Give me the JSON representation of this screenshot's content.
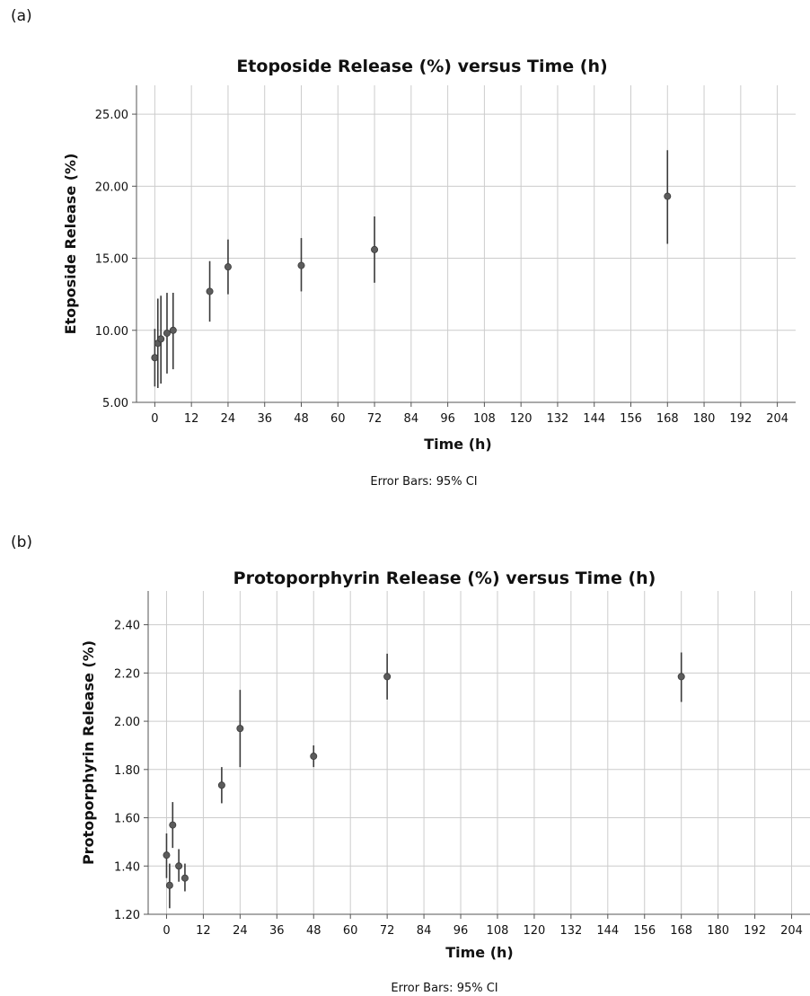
{
  "panels": [
    {
      "label": "(a)"
    },
    {
      "label": "(b)"
    }
  ],
  "chart_data": [
    {
      "type": "scatter",
      "title": "Etoposide Release (%) versus Time (h)",
      "xlabel": "Time (h)",
      "ylabel": "Etoposide Release (%)",
      "note": "Error Bars: 95% CI",
      "xlim": [
        -6,
        210
      ],
      "ylim": [
        5,
        27
      ],
      "xticks": [
        0,
        12,
        24,
        36,
        48,
        60,
        72,
        84,
        96,
        108,
        120,
        132,
        144,
        156,
        168,
        180,
        192,
        204
      ],
      "yticks": [
        5,
        10,
        15,
        20,
        25
      ],
      "ytick_labels": [
        "5.00",
        "10.00",
        "15.00",
        "20.00",
        "25.00"
      ],
      "grid": true,
      "error_bars": "95% CI",
      "points": [
        {
          "x": 0,
          "y": 8.1,
          "lo": 6.1,
          "hi": 10.1
        },
        {
          "x": 1,
          "y": 9.1,
          "lo": 6.0,
          "hi": 12.2
        },
        {
          "x": 2,
          "y": 9.4,
          "lo": 6.3,
          "hi": 12.4
        },
        {
          "x": 4,
          "y": 9.8,
          "lo": 7.0,
          "hi": 12.6
        },
        {
          "x": 6,
          "y": 10.0,
          "lo": 7.3,
          "hi": 12.6
        },
        {
          "x": 18,
          "y": 12.7,
          "lo": 10.6,
          "hi": 14.8
        },
        {
          "x": 24,
          "y": 14.4,
          "lo": 12.5,
          "hi": 16.3
        },
        {
          "x": 48,
          "y": 14.5,
          "lo": 12.7,
          "hi": 16.4
        },
        {
          "x": 72,
          "y": 15.6,
          "lo": 13.3,
          "hi": 17.9
        },
        {
          "x": 168,
          "y": 19.3,
          "lo": 16.0,
          "hi": 22.5
        }
      ]
    },
    {
      "type": "scatter",
      "title": "Protoporphyrin Release (%) versus Time (h)",
      "xlabel": "Time (h)",
      "ylabel": "Protoporphyrin Release (%)",
      "note": "Error Bars: 95% CI",
      "xlim": [
        -6,
        210
      ],
      "ylim": [
        1.2,
        2.54
      ],
      "xticks": [
        0,
        12,
        24,
        36,
        48,
        60,
        72,
        84,
        96,
        108,
        120,
        132,
        144,
        156,
        168,
        180,
        192,
        204
      ],
      "yticks": [
        1.2,
        1.4,
        1.6,
        1.8,
        2.0,
        2.2,
        2.4
      ],
      "ytick_labels": [
        "1.20",
        "1.40",
        "1.60",
        "1.80",
        "2.00",
        "2.20",
        "2.40"
      ],
      "grid": true,
      "error_bars": "95% CI",
      "points": [
        {
          "x": 0,
          "y": 1.445,
          "lo": 1.35,
          "hi": 1.535
        },
        {
          "x": 1,
          "y": 1.32,
          "lo": 1.225,
          "hi": 1.41
        },
        {
          "x": 2,
          "y": 1.57,
          "lo": 1.475,
          "hi": 1.665
        },
        {
          "x": 4,
          "y": 1.4,
          "lo": 1.335,
          "hi": 1.47
        },
        {
          "x": 6,
          "y": 1.35,
          "lo": 1.295,
          "hi": 1.41
        },
        {
          "x": 18,
          "y": 1.735,
          "lo": 1.66,
          "hi": 1.81
        },
        {
          "x": 24,
          "y": 1.97,
          "lo": 1.81,
          "hi": 2.13
        },
        {
          "x": 48,
          "y": 1.855,
          "lo": 1.81,
          "hi": 1.9
        },
        {
          "x": 72,
          "y": 2.185,
          "lo": 2.09,
          "hi": 2.28
        },
        {
          "x": 168,
          "y": 2.185,
          "lo": 2.08,
          "hi": 2.285
        }
      ]
    }
  ]
}
